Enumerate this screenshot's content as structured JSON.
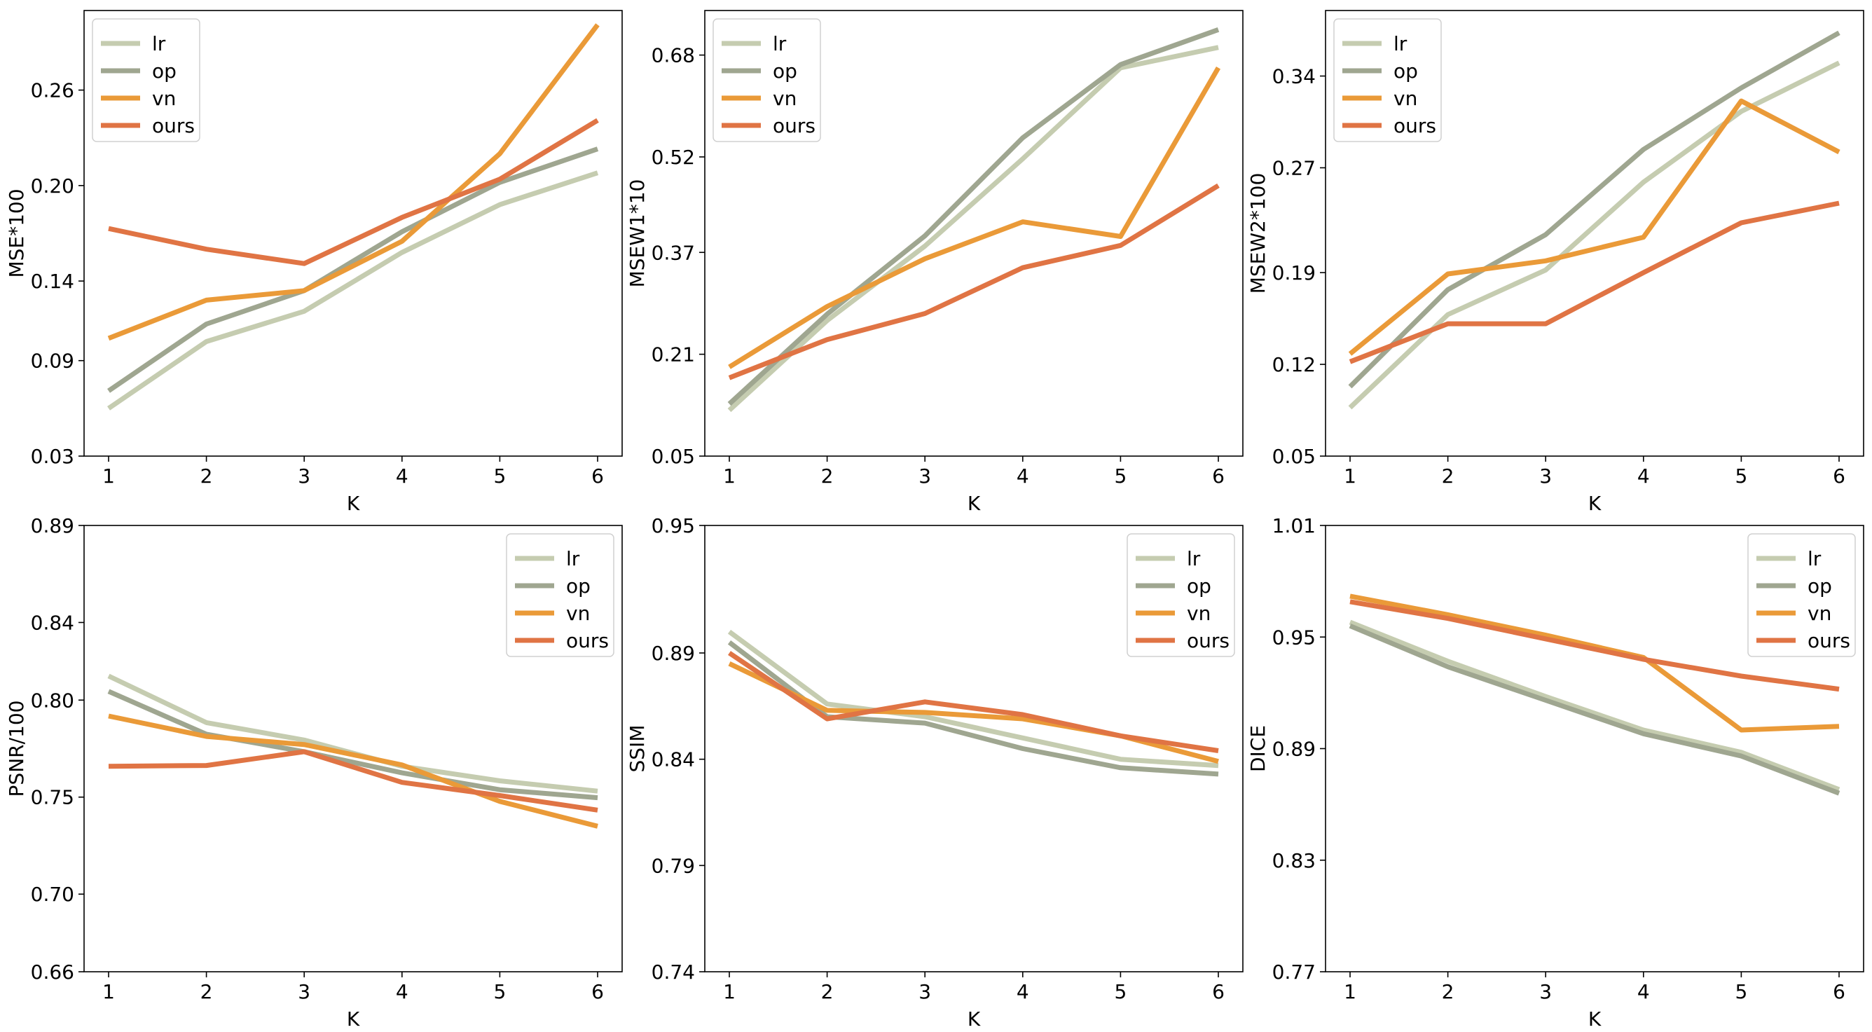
{
  "figure": {
    "layout": "2x3 grid of line charts"
  },
  "colors": {
    "lr": "#c5ccb0",
    "op": "#9fa690",
    "vn": "#ea9a38",
    "ours": "#e07444"
  },
  "chart_data": [
    {
      "type": "line",
      "title": "",
      "xlabel": "K",
      "ylabel": "MSE*100",
      "x": [
        1,
        2,
        3,
        4,
        5,
        6
      ],
      "x_ticks": [
        "1",
        "2",
        "3",
        "4",
        "5",
        "6"
      ],
      "ylim": [
        0.03,
        0.31
      ],
      "y_ticks": [
        "0.03",
        "0.09",
        "0.14",
        "0.20",
        "0.26"
      ],
      "y_tick_values": [
        0.03,
        0.09,
        0.14,
        0.2,
        0.26
      ],
      "legend_position": "top-left",
      "series": [
        {
          "name": "lr",
          "values": [
            0.06,
            0.102,
            0.121,
            0.158,
            0.188,
            0.208
          ]
        },
        {
          "name": "op",
          "values": [
            0.071,
            0.113,
            0.134,
            0.171,
            0.202,
            0.223
          ]
        },
        {
          "name": "vn",
          "values": [
            0.104,
            0.128,
            0.134,
            0.165,
            0.22,
            0.301
          ]
        },
        {
          "name": "ours",
          "values": [
            0.173,
            0.16,
            0.151,
            0.18,
            0.204,
            0.241
          ]
        }
      ]
    },
    {
      "type": "line",
      "title": "",
      "xlabel": "K",
      "ylabel": "MSEW1*10",
      "x": [
        1,
        2,
        3,
        4,
        5,
        6
      ],
      "x_ticks": [
        "1",
        "2",
        "3",
        "4",
        "5",
        "6"
      ],
      "ylim": [
        0.05,
        0.75
      ],
      "y_ticks": [
        "0.05",
        "0.21",
        "0.37",
        "0.52",
        "0.68"
      ],
      "y_tick_values": [
        0.05,
        0.21,
        0.37,
        0.52,
        0.68
      ],
      "legend_position": "top-left",
      "series": [
        {
          "name": "lr",
          "values": [
            0.122,
            0.263,
            0.38,
            0.517,
            0.66,
            0.692
          ]
        },
        {
          "name": "op",
          "values": [
            0.132,
            0.273,
            0.396,
            0.55,
            0.665,
            0.72
          ]
        },
        {
          "name": "vn",
          "values": [
            0.19,
            0.285,
            0.36,
            0.418,
            0.395,
            0.66
          ]
        },
        {
          "name": "ours",
          "values": [
            0.173,
            0.233,
            0.274,
            0.346,
            0.381,
            0.475
          ]
        }
      ]
    },
    {
      "type": "line",
      "title": "",
      "xlabel": "K",
      "ylabel": "MSEW2*100",
      "x": [
        1,
        2,
        3,
        4,
        5,
        6
      ],
      "x_ticks": [
        "1",
        "2",
        "3",
        "4",
        "5",
        "6"
      ],
      "ylim": [
        0.05,
        0.39
      ],
      "y_ticks": [
        "0.05",
        "0.12",
        "0.19",
        "0.27",
        "0.34"
      ],
      "y_tick_values": [
        0.05,
        0.12,
        0.19,
        0.27,
        0.34
      ],
      "legend_position": "top-left",
      "series": [
        {
          "name": "lr",
          "values": [
            0.087,
            0.158,
            0.192,
            0.259,
            0.313,
            0.35
          ]
        },
        {
          "name": "op",
          "values": [
            0.103,
            0.177,
            0.219,
            0.284,
            0.331,
            0.373
          ]
        },
        {
          "name": "vn",
          "values": [
            0.128,
            0.189,
            0.199,
            0.217,
            0.321,
            0.282
          ]
        },
        {
          "name": "ours",
          "values": [
            0.122,
            0.151,
            0.151,
            0.19,
            0.228,
            0.243
          ]
        }
      ]
    },
    {
      "type": "line",
      "title": "",
      "xlabel": "K",
      "ylabel": "PSNR/100",
      "x": [
        1,
        2,
        3,
        4,
        5,
        6
      ],
      "x_ticks": [
        "1",
        "2",
        "3",
        "4",
        "5",
        "6"
      ],
      "ylim": [
        0.66,
        0.89
      ],
      "y_ticks": [
        "0.66",
        "0.70",
        "0.75",
        "0.80",
        "0.84",
        "0.89"
      ],
      "y_tick_values": [
        0.66,
        0.7,
        0.75,
        0.8,
        0.84,
        0.89
      ],
      "legend_position": "top-right",
      "series": [
        {
          "name": "lr",
          "values": [
            0.8124,
            0.7884,
            0.7794,
            0.7659,
            0.7584,
            0.7531
          ]
        },
        {
          "name": "op",
          "values": [
            0.8045,
            0.7824,
            0.7734,
            0.7625,
            0.7538,
            0.7497
          ]
        },
        {
          "name": "vn",
          "values": [
            0.7918,
            0.7813,
            0.7771,
            0.7666,
            0.7478,
            0.735
          ]
        },
        {
          "name": "ours",
          "values": [
            0.7659,
            0.7663,
            0.7734,
            0.7576,
            0.7508,
            0.7433
          ]
        }
      ]
    },
    {
      "type": "line",
      "title": "",
      "xlabel": "K",
      "ylabel": "SSIM",
      "x": [
        1,
        2,
        3,
        4,
        5,
        6
      ],
      "x_ticks": [
        "1",
        "2",
        "3",
        "4",
        "5",
        "6"
      ],
      "ylim": [
        0.74,
        0.95
      ],
      "y_ticks": [
        "0.74",
        "0.79",
        "0.84",
        "0.89",
        "0.95"
      ],
      "y_tick_values": [
        0.74,
        0.79,
        0.84,
        0.89,
        0.95
      ],
      "legend_position": "top-right",
      "series": [
        {
          "name": "lr",
          "values": [
            0.9,
            0.866,
            0.86,
            0.85,
            0.84,
            0.837
          ]
        },
        {
          "name": "op",
          "values": [
            0.895,
            0.86,
            0.857,
            0.845,
            0.836,
            0.833
          ]
        },
        {
          "name": "vn",
          "values": [
            0.885,
            0.863,
            0.862,
            0.859,
            0.851,
            0.839
          ]
        },
        {
          "name": "ours",
          "values": [
            0.89,
            0.859,
            0.867,
            0.861,
            0.851,
            0.844
          ]
        }
      ]
    },
    {
      "type": "line",
      "title": "",
      "xlabel": "K",
      "ylabel": "DICE",
      "x": [
        1,
        2,
        3,
        4,
        5,
        6
      ],
      "x_ticks": [
        "1",
        "2",
        "3",
        "4",
        "5",
        "6"
      ],
      "ylim": [
        0.77,
        1.01
      ],
      "y_ticks": [
        "0.77",
        "0.83",
        "0.89",
        "0.95",
        "1.01"
      ],
      "y_tick_values": [
        0.77,
        0.83,
        0.89,
        0.95,
        1.01
      ],
      "legend_position": "top-right",
      "series": [
        {
          "name": "lr",
          "values": [
            0.958,
            0.937,
            0.918,
            0.9,
            0.888,
            0.868
          ]
        },
        {
          "name": "op",
          "values": [
            0.956,
            0.934,
            0.916,
            0.898,
            0.886,
            0.866
          ]
        },
        {
          "name": "vn",
          "values": [
            0.972,
            0.962,
            0.951,
            0.939,
            0.9,
            0.902
          ]
        },
        {
          "name": "ours",
          "values": [
            0.969,
            0.96,
            0.949,
            0.938,
            0.929,
            0.922
          ]
        }
      ]
    }
  ]
}
